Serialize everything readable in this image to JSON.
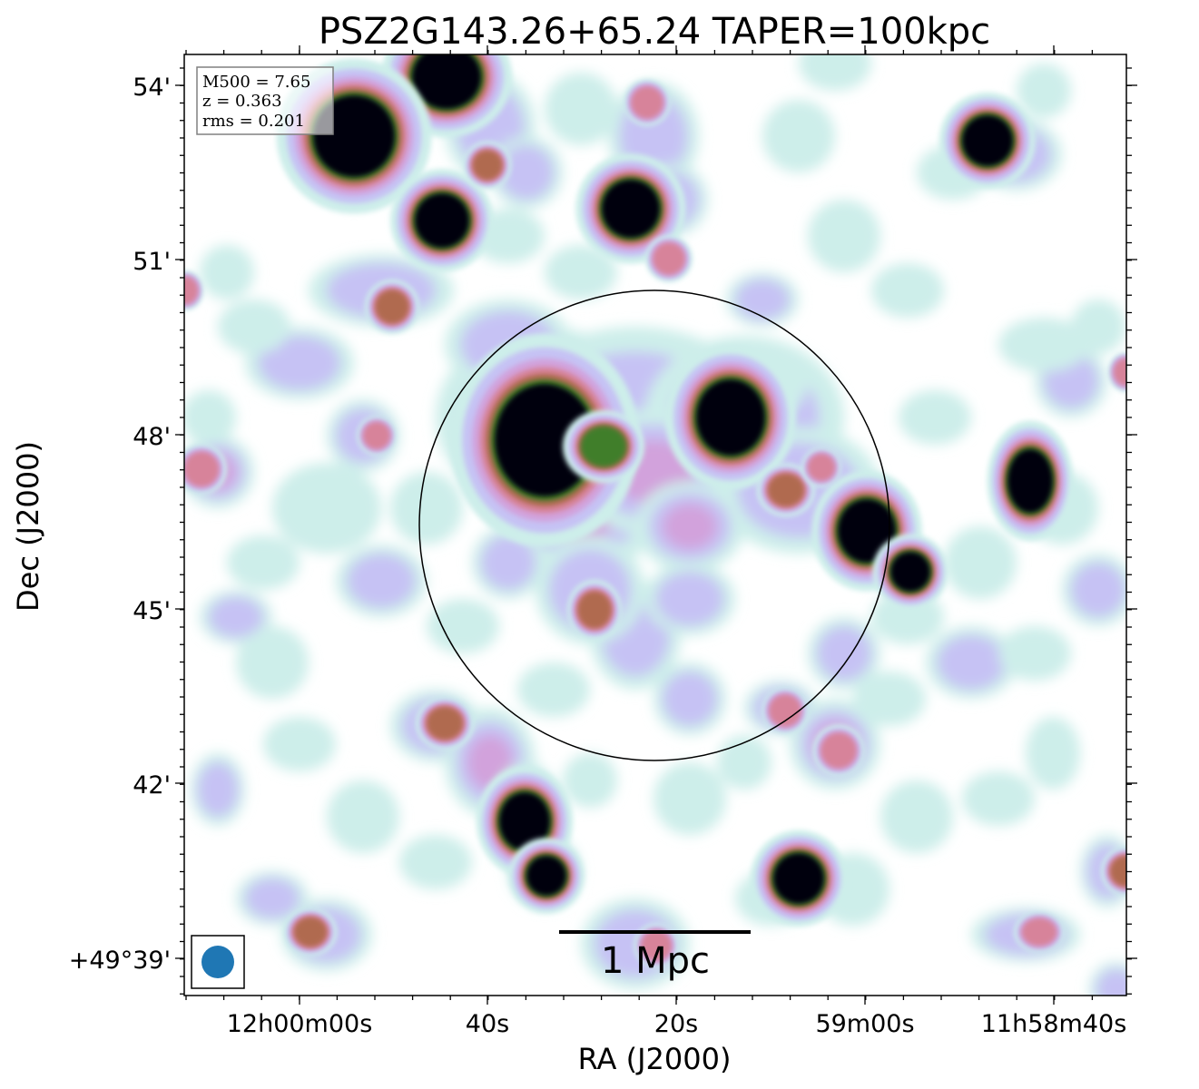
{
  "title": "PSZ2G143.26+65.24 TAPER=100kpc",
  "xlabel": "RA (J2000)",
  "ylabel": "Dec (J2000)",
  "x_ticks": [
    "12h00m00s",
    "40s",
    "20s",
    "59m00s",
    "11h58m40s"
  ],
  "y_ticks": [
    "54'",
    "51'",
    "48'",
    "45'",
    "42'",
    "+49°39'"
  ],
  "info_box": [
    "M500 = 7.65",
    "z = 0.363",
    "rms = 0.201"
  ],
  "scalebar_label": "1 Mpc",
  "colors": {
    "frame": "#000000",
    "beam": "#1f77b4",
    "core": "#05050f"
  },
  "colormap": [
    "#ffffff",
    "#cdeeea",
    "#c6c2f4",
    "#d2a2dc",
    "#d7839a",
    "#b06a50",
    "#3f7e2b",
    "#05050f"
  ]
}
